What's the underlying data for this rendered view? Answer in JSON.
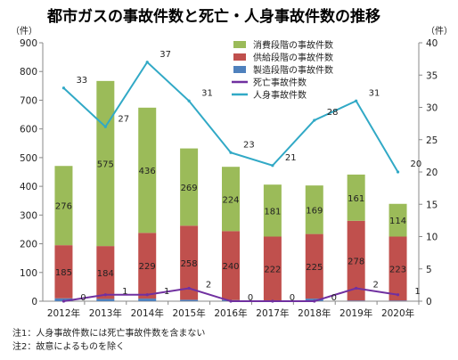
{
  "chart_data": {
    "type": "bar",
    "title": "都市ガスの事故件数と死亡・人身事故件数の推移",
    "left_unit": "（件）",
    "right_unit": "（件）",
    "categories": [
      "2012年",
      "2013年",
      "2014年",
      "2015年",
      "2016年",
      "2017年",
      "2018年",
      "2019年",
      "2020年"
    ],
    "y_left": {
      "min": 0,
      "max": 900,
      "ticks": [
        "0",
        "100",
        "200",
        "300",
        "400",
        "500",
        "600",
        "700",
        "800",
        "900"
      ]
    },
    "y_right": {
      "min": 0,
      "max": 40,
      "ticks": [
        "0",
        "5",
        "10",
        "15",
        "20",
        "25",
        "30",
        "35",
        "40"
      ]
    },
    "stacked_series": [
      {
        "name": "製造段階の事故件数",
        "color": "#4f81bd",
        "values": [
          10,
          8,
          9,
          5,
          4,
          3,
          9,
          2,
          2
        ],
        "labels": [
          "10",
          "8",
          "9",
          "5",
          "4",
          "3",
          "9",
          "2",
          "2"
        ]
      },
      {
        "name": "供給段階の事故件数",
        "color": "#c0504d",
        "values": [
          185,
          184,
          229,
          258,
          240,
          222,
          225,
          278,
          223
        ],
        "labels": [
          "185",
          "184",
          "229",
          "258",
          "240",
          "222",
          "225",
          "278",
          "223"
        ]
      },
      {
        "name": "消費段階の事故件数",
        "color": "#9bbb59",
        "values": [
          276,
          575,
          436,
          269,
          224,
          181,
          169,
          161,
          114
        ],
        "labels": [
          "276",
          "575",
          "436",
          "269",
          "224",
          "181",
          "169",
          "161",
          "114"
        ]
      }
    ],
    "line_series": [
      {
        "name": "死亡事故件数",
        "color": "#7030a0",
        "values": [
          0,
          1,
          1,
          2,
          0,
          0,
          0,
          2,
          1
        ],
        "labels": [
          "0",
          "1",
          "1",
          "2",
          "0",
          "0",
          "0",
          "2",
          "1"
        ]
      },
      {
        "name": "人身事故件数",
        "color": "#31a9c6",
        "values": [
          33,
          27,
          37,
          31,
          23,
          21,
          28,
          31,
          20
        ],
        "labels": [
          "33",
          "27",
          "37",
          "31",
          "23",
          "21",
          "28",
          "31",
          "20"
        ]
      }
    ],
    "legend": [
      {
        "name": "消費段階の事故件数",
        "color": "#9bbb59",
        "kind": "bar"
      },
      {
        "name": "供給段階の事故件数",
        "color": "#c0504d",
        "kind": "bar"
      },
      {
        "name": "製造段階の事故件数",
        "color": "#4f81bd",
        "kind": "bar"
      },
      {
        "name": "死亡事故件数",
        "color": "#7030a0",
        "kind": "line"
      },
      {
        "name": "人身事故件数",
        "color": "#31a9c6",
        "kind": "line"
      }
    ],
    "legend_position": "top-right",
    "grid": false
  },
  "notes": [
    "注1：人身事故件数には死亡事故件数を含まない",
    "注2：故意によるものを除く"
  ]
}
